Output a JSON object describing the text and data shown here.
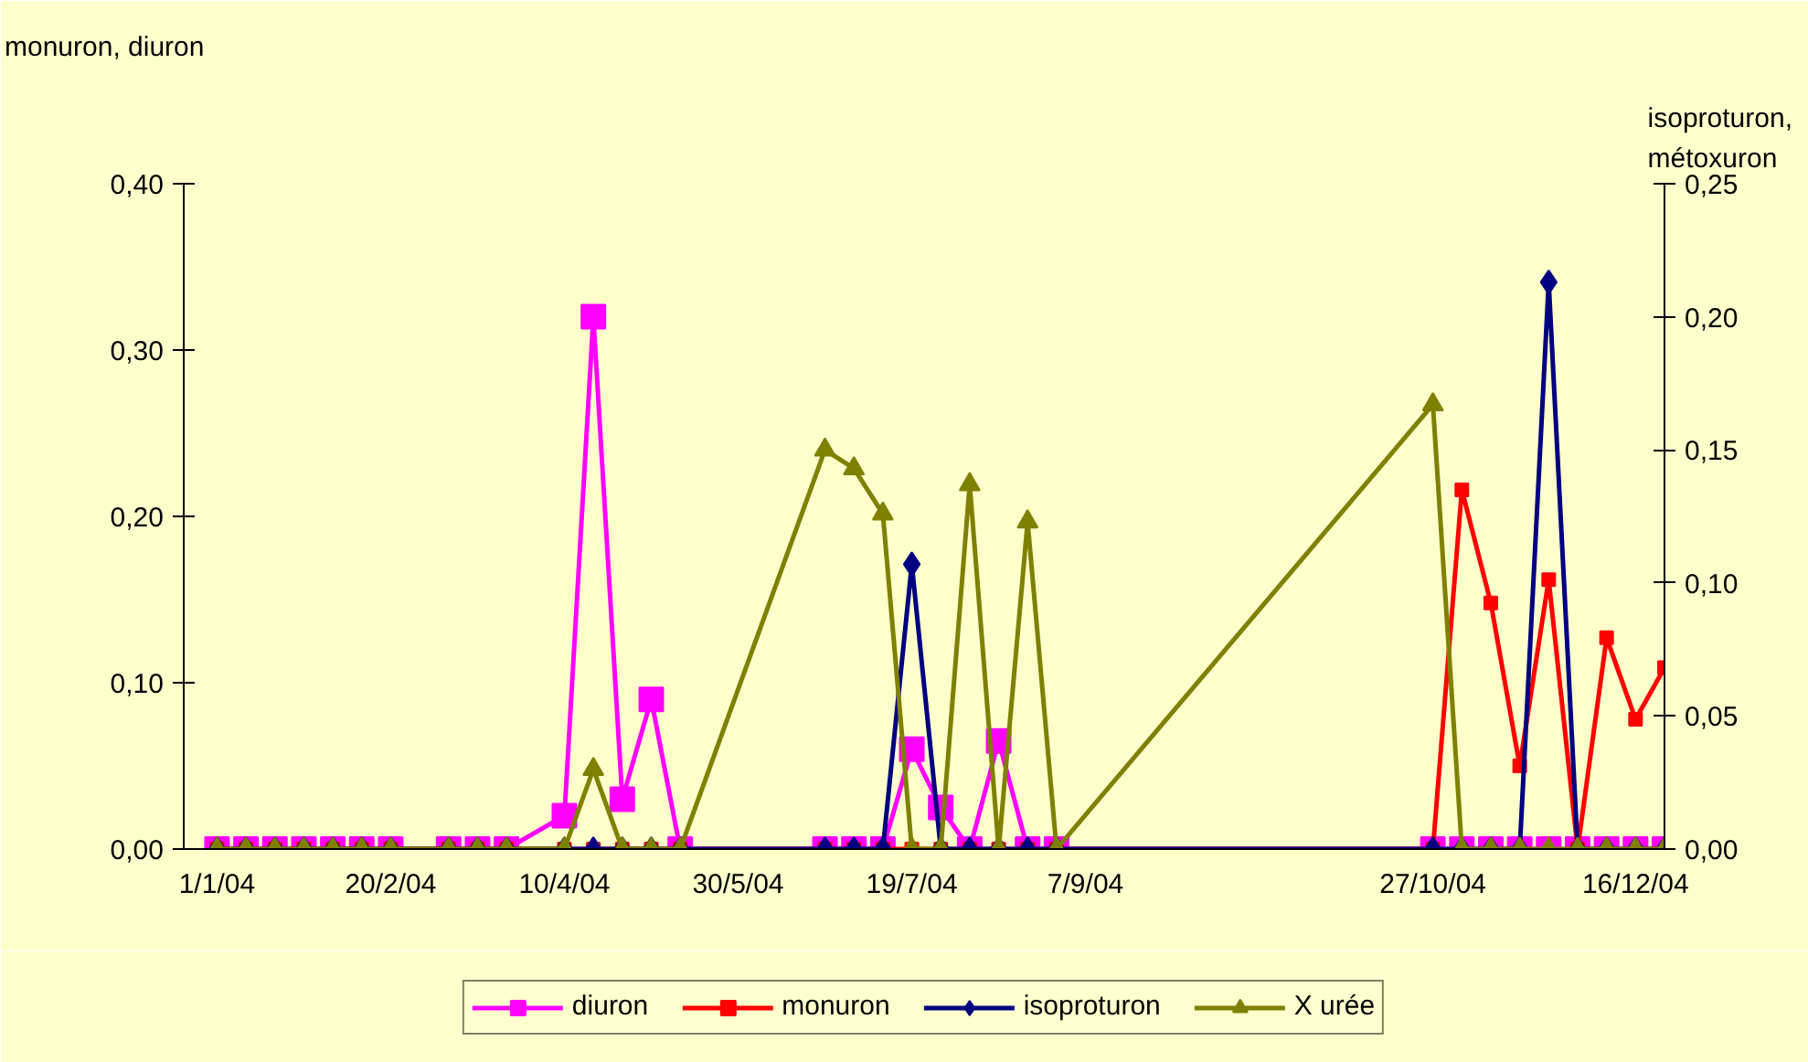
{
  "chart_data": {
    "type": "line",
    "ylabel": "monuron,  diuron",
    "y2label": "isoproturon, métoxuron",
    "categories": [
      "1/1/04",
      null,
      null,
      null,
      null,
      null,
      "20/2/04",
      null,
      null,
      null,
      null,
      null,
      "10/4/04",
      null,
      null,
      null,
      null,
      null,
      "30/5/04",
      null,
      null,
      null,
      null,
      null,
      "19/7/04",
      null,
      null,
      null,
      null,
      null,
      "7/9/04",
      null,
      null,
      null,
      null,
      null,
      null,
      null,
      null,
      null,
      null,
      null,
      "27/10/04",
      null,
      null,
      null,
      null,
      null,
      null,
      "16/12/04",
      null
    ],
    "ylim": [
      0,
      0.4
    ],
    "yticks": [
      {
        "value": 0,
        "label": "0,00"
      },
      {
        "value": 0.1,
        "label": "0,10"
      },
      {
        "value": 0.2,
        "label": "0,20"
      },
      {
        "value": 0.3,
        "label": "0,30"
      },
      {
        "value": 0.4,
        "label": "0,40"
      }
    ],
    "y2lim": [
      0,
      0.25
    ],
    "y2ticks": [
      {
        "value": 0,
        "label": "0,00"
      },
      {
        "value": 0.05,
        "label": "0,05"
      },
      {
        "value": 0.1,
        "label": "0,10"
      },
      {
        "value": 0.15,
        "label": "0,15"
      },
      {
        "value": 0.2,
        "label": "0,20"
      },
      {
        "value": 0.25,
        "label": "0,25"
      }
    ],
    "grid": false,
    "legend": "bottom",
    "series": [
      {
        "name": "diuron",
        "color": "#ff00ff",
        "marker": "square",
        "values": [
          0,
          0,
          0,
          0,
          0,
          0,
          0,
          null,
          0,
          0,
          0,
          null,
          0.02,
          0.32,
          0.03,
          0.09,
          0,
          null,
          null,
          null,
          null,
          0,
          0,
          0,
          0.06,
          0.025,
          0,
          0.065,
          0,
          0,
          null,
          null,
          null,
          null,
          null,
          null,
          null,
          null,
          null,
          null,
          null,
          null,
          0,
          0,
          0,
          0,
          0,
          0,
          0,
          0,
          0
        ]
      },
      {
        "name": "monuron",
        "color": "#ff0000",
        "marker": "square",
        "values": [
          0,
          0,
          0,
          0,
          0,
          0,
          0,
          null,
          0,
          0,
          0,
          null,
          0,
          0,
          0,
          0,
          0,
          null,
          null,
          null,
          null,
          0,
          0,
          0,
          0,
          0,
          0,
          0,
          0,
          0,
          null,
          null,
          null,
          null,
          null,
          null,
          null,
          null,
          null,
          null,
          null,
          null,
          0,
          0.216,
          0.148,
          0.05,
          0.162,
          0,
          0.127,
          0.078,
          0.109
        ]
      },
      {
        "name": "isoproturon",
        "color": "#000080",
        "marker": "diamond",
        "axis": "y2",
        "values": [
          0,
          0,
          0,
          0,
          0,
          0,
          0,
          null,
          0,
          0,
          0,
          null,
          0,
          0,
          0,
          0,
          0,
          null,
          null,
          null,
          null,
          0,
          0,
          0,
          0.107,
          0,
          0,
          0,
          0,
          0,
          null,
          null,
          null,
          null,
          null,
          null,
          null,
          null,
          null,
          null,
          null,
          null,
          0,
          0,
          0,
          0,
          0.213,
          0,
          0,
          0,
          0
        ]
      },
      {
        "name": "X urée",
        "color": "#808000",
        "marker": "triangle",
        "axis": "y2",
        "values": [
          0,
          0,
          0,
          0,
          0,
          0,
          0,
          null,
          0,
          0,
          0,
          null,
          0,
          0.03,
          0,
          0,
          0,
          null,
          null,
          null,
          null,
          0.15,
          0.143,
          0.126,
          0,
          0,
          0.137,
          0,
          0.123,
          0,
          null,
          null,
          null,
          null,
          null,
          null,
          null,
          null,
          null,
          null,
          null,
          null,
          0.167,
          0,
          0,
          0,
          0,
          0,
          0,
          0,
          0
        ]
      }
    ]
  }
}
